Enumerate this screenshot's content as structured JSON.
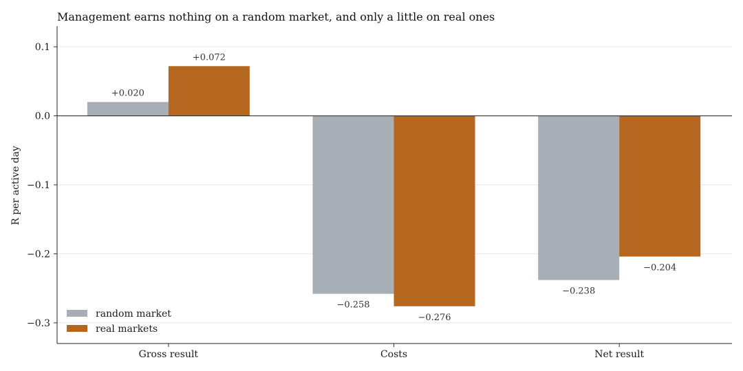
{
  "chart_data": {
    "type": "bar",
    "title": "Management earns nothing on a random market, and only a little on real ones",
    "xlabel": "",
    "ylabel": "R per active day",
    "categories": [
      "Gross result",
      "Costs",
      "Net result"
    ],
    "series": [
      {
        "name": "random market",
        "color": "#a8aeb6",
        "values": [
          0.02,
          -0.258,
          -0.238
        ],
        "labels": [
          "+0.020",
          "−0.258",
          "−0.238"
        ]
      },
      {
        "name": "real markets",
        "color": "#b5661f",
        "values": [
          0.072,
          -0.276,
          -0.204
        ],
        "labels": [
          "+0.072",
          "−0.276",
          "−0.204"
        ]
      }
    ],
    "ylim": [
      -0.33,
      0.13
    ],
    "yticks": [
      0.1,
      0.0,
      -0.1,
      -0.2,
      -0.3
    ],
    "ytick_labels": [
      "0.1",
      "0.0",
      "−0.1",
      "−0.2",
      "−0.3"
    ],
    "grid": "horizontal",
    "legend": "lower-left"
  }
}
